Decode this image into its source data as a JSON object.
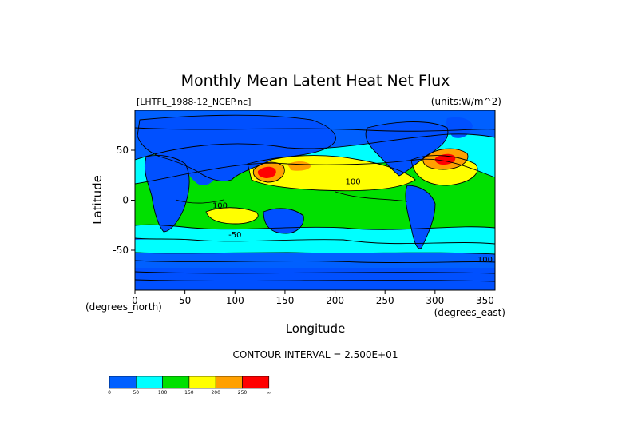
{
  "title": "Monthly Mean Latent Heat Net Flux",
  "file_label": "[LHTFL_1988-12_NCEP.nc]",
  "units_label": "(units:W/m^2)",
  "y_axis": {
    "label": "Latitude",
    "ticks": [
      {
        "value": 50,
        "text": "50"
      },
      {
        "value": 0,
        "text": "0"
      },
      {
        "value": -50,
        "text": "-50"
      }
    ],
    "unit_note": "(degrees_north)",
    "range": [
      -90,
      90
    ]
  },
  "x_axis": {
    "label": "Longitude",
    "ticks": [
      {
        "value": 0,
        "text": "0"
      },
      {
        "value": 50,
        "text": "50"
      },
      {
        "value": 100,
        "text": "100"
      },
      {
        "value": 150,
        "text": "150"
      },
      {
        "value": 200,
        "text": "200"
      },
      {
        "value": 250,
        "text": "250"
      },
      {
        "value": 300,
        "text": "300"
      },
      {
        "value": 350,
        "text": "350"
      }
    ],
    "unit_note": "(degrees_east)",
    "range": [
      0,
      360
    ]
  },
  "contour_interval": "CONTOUR INTERVAL = 2.500E+01",
  "colorbar": {
    "colors": [
      "#0060ff",
      "#00ffff",
      "#00e000",
      "#ffff00",
      "#ffa000",
      "#ff0000"
    ],
    "labels": [
      "0",
      "50",
      "100",
      "150",
      "200",
      "250",
      "∞"
    ]
  },
  "contour_labels": [
    {
      "text": "100",
      "lon": 85,
      "lat": -8
    },
    {
      "text": "100",
      "lon": 218,
      "lat": 16
    },
    {
      "text": "-50",
      "lon": 100,
      "lat": -37
    },
    {
      "text": "100",
      "lon": 350,
      "lat": -62
    }
  ],
  "land_color": "#0055ff",
  "ocean_base_color": "#00e0ff"
}
